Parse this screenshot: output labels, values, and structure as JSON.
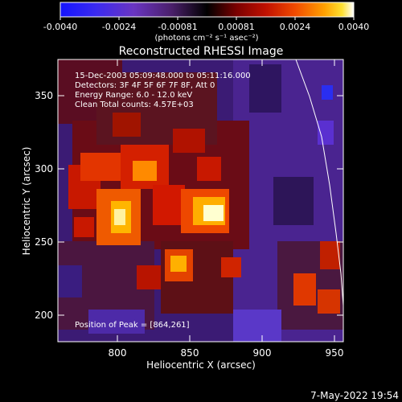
{
  "colorbar": {
    "tick_labels": [
      "-0.0040",
      "-0.0024",
      "-0.00081",
      "0.00081",
      "0.0024",
      "0.0040"
    ],
    "unit_label": "(photons cm⁻² s⁻¹ asec⁻²)",
    "range": [
      -0.004,
      0.004
    ],
    "colors": [
      "#1414ff",
      "#5a2bd2",
      "#7a32b0",
      "#4a1f6a",
      "#000000",
      "#6a0000",
      "#b80d00",
      "#e83a00",
      "#ff8a00",
      "#ffd000",
      "#ffffff"
    ]
  },
  "image": {
    "title": "Reconstructed RHESSI Image",
    "info_lines": [
      "15-Dec-2003 05:09:48.000 to 05:11:16.000",
      "Detectors: 3F 4F 5F 6F 7F 8F, Att 0",
      "Energy Range: 6.0 - 12.0 keV",
      "Clean     Total counts: 4.57E+03"
    ],
    "peak_label": "Position of Peak = [864,261]",
    "x_axis": {
      "label": "Heliocentric X (arcsec)",
      "range": [
        760,
        955
      ],
      "ticks": [
        "800",
        "850",
        "900",
        "950"
      ]
    },
    "y_axis": {
      "label": "Heliocentric Y (arcsec)",
      "range": [
        185,
        380
      ],
      "ticks": [
        "200",
        "250",
        "300",
        "350"
      ]
    }
  },
  "footer": {
    "date": "7-May-2022 19:54"
  }
}
